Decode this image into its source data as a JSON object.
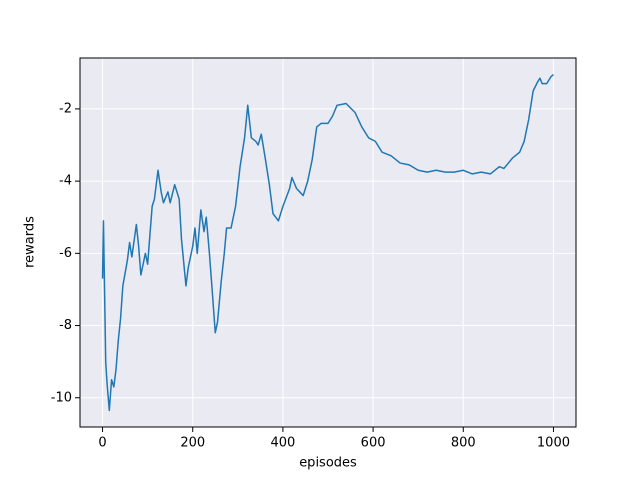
{
  "chart_data": {
    "type": "line",
    "xlabel": "episodes",
    "ylabel": "rewards",
    "x": [
      0,
      2,
      7,
      10,
      15,
      20,
      25,
      30,
      35,
      40,
      45,
      55,
      60,
      65,
      75,
      80,
      85,
      95,
      100,
      105,
      110,
      115,
      123,
      130,
      135,
      145,
      150,
      160,
      170,
      175,
      185,
      190,
      200,
      205,
      210,
      218,
      225,
      230,
      237,
      243,
      250,
      255,
      263,
      270,
      275,
      285,
      295,
      305,
      315,
      322,
      330,
      340,
      345,
      352,
      360,
      370,
      378,
      390,
      400,
      415,
      420,
      430,
      445,
      455,
      465,
      475,
      485,
      500,
      510,
      520,
      540,
      560,
      575,
      590,
      605,
      620,
      640,
      660,
      680,
      700,
      720,
      740,
      760,
      780,
      800,
      820,
      840,
      860,
      870,
      880,
      890,
      900,
      910,
      925,
      935,
      945,
      955,
      965,
      970,
      975,
      985,
      995,
      1000
    ],
    "values": [
      -6.7,
      -5.1,
      -9.0,
      -9.6,
      -10.35,
      -9.5,
      -9.7,
      -9.2,
      -8.4,
      -7.8,
      -6.9,
      -6.2,
      -5.7,
      -6.1,
      -5.2,
      -5.8,
      -6.6,
      -6.0,
      -6.3,
      -5.5,
      -4.7,
      -4.5,
      -3.7,
      -4.3,
      -4.6,
      -4.3,
      -4.6,
      -4.1,
      -4.5,
      -5.6,
      -6.9,
      -6.4,
      -5.8,
      -5.3,
      -6.0,
      -4.8,
      -5.4,
      -5.0,
      -6.0,
      -7.0,
      -8.2,
      -7.9,
      -6.8,
      -6.0,
      -5.3,
      -5.3,
      -4.7,
      -3.6,
      -2.8,
      -1.9,
      -2.8,
      -2.9,
      -3.0,
      -2.7,
      -3.3,
      -4.1,
      -4.9,
      -5.1,
      -4.7,
      -4.2,
      -3.9,
      -4.2,
      -4.4,
      -4.0,
      -3.4,
      -2.5,
      -2.4,
      -2.4,
      -2.2,
      -1.9,
      -1.85,
      -2.1,
      -2.5,
      -2.8,
      -2.9,
      -3.2,
      -3.3,
      -3.5,
      -3.55,
      -3.7,
      -3.75,
      -3.7,
      -3.75,
      -3.75,
      -3.7,
      -3.8,
      -3.75,
      -3.8,
      -3.7,
      -3.6,
      -3.65,
      -3.5,
      -3.35,
      -3.2,
      -2.9,
      -2.3,
      -1.5,
      -1.25,
      -1.15,
      -1.3,
      -1.3,
      -1.1,
      -1.05
    ],
    "color": "#1f77b4",
    "xlim": [
      -50,
      1050
    ],
    "xticks": [
      0,
      200,
      400,
      600,
      800,
      1000
    ],
    "ylim": [
      -10.81,
      -0.59
    ],
    "yticks": [
      -10,
      -8,
      -6,
      -4,
      -2
    ],
    "grid": true
  }
}
